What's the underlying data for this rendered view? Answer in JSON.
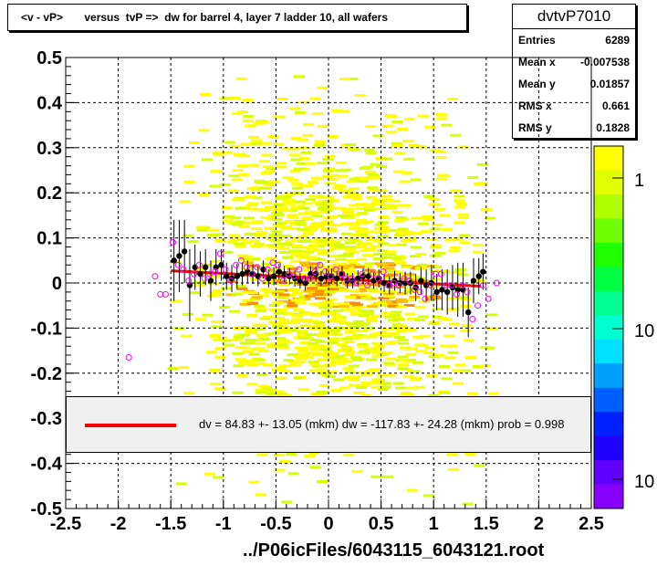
{
  "chart_data": {
    "type": "scatter",
    "title": "<v - vP>       versus  tvP =>  dw for barrel 4, layer 7 ladder 10, all wafers",
    "xlabel": "../P06icFiles/6043115_6043121.root",
    "ylabel": "",
    "xlim": [
      -2.5,
      2.5
    ],
    "ylim": [
      -0.5,
      0.5
    ],
    "x_ticks": [
      "-2.5",
      "-2",
      "-1.5",
      "-1",
      "-0.5",
      "0",
      "0.5",
      "1",
      "1.5",
      "2",
      "2.5"
    ],
    "y_ticks": [
      "0.5",
      "0.4",
      "0.3",
      "0.2",
      "0.1",
      "0",
      "-0.1",
      "-0.2",
      "-0.3",
      "-0.4",
      "-0.5"
    ],
    "colorbar_ticks": [
      "1",
      "10",
      "10"
    ],
    "grid": true,
    "colors": {
      "fit": "#ff0000",
      "open_marker": "#ff00ff",
      "filled_marker": "#000000"
    },
    "stats": {
      "name": "dvtvP7010",
      "rows": [
        {
          "label": "Entries",
          "value": "6289"
        },
        {
          "label": "Mean x",
          "value": "-0.007538"
        },
        {
          "label": "Mean y",
          "value": "0.01857"
        },
        {
          "label": "RMS x",
          "value": "0.661"
        },
        {
          "label": "RMS y",
          "value": "0.1828"
        }
      ]
    },
    "fit": {
      "text": "dv =   84.83 +- 13.05 (mkm) dw = -117.83 +- 24.28 (mkm) prob = 0.998",
      "x": [
        -1.5,
        1.45
      ],
      "y": [
        0.027,
        -0.007
      ]
    },
    "series": [
      {
        "style": "filled",
        "x": [
          -1.47,
          -1.42,
          -1.37,
          -1.32,
          -1.27,
          -1.22,
          -1.17,
          -1.12,
          -1.07,
          -1.02,
          -0.97,
          -0.92,
          -0.87,
          -0.82,
          -0.77,
          -0.72,
          -0.67,
          -0.62,
          -0.57,
          -0.52,
          -0.47,
          -0.42,
          -0.37,
          -0.32,
          -0.27,
          -0.22,
          -0.17,
          -0.12,
          -0.07,
          -0.02,
          0.03,
          0.08,
          0.13,
          0.18,
          0.23,
          0.28,
          0.33,
          0.38,
          0.43,
          0.48,
          0.53,
          0.58,
          0.63,
          0.68,
          0.73,
          0.78,
          0.83,
          0.88,
          0.93,
          0.98,
          1.03,
          1.08,
          1.13,
          1.18,
          1.23,
          1.28,
          1.33,
          1.38,
          1.43,
          1.47
        ],
        "y": [
          0.05,
          0.06,
          0.07,
          -0.005,
          0.035,
          0.02,
          0.035,
          0.005,
          0.035,
          0.04,
          0.015,
          0.01,
          0.015,
          0.02,
          0.025,
          0.02,
          0.015,
          0.03,
          0.01,
          0.015,
          0.025,
          0.02,
          0.015,
          0.01,
          0.005,
          0.0,
          0.02,
          0.02,
          0.01,
          0.015,
          0.015,
          0.01,
          0.02,
          0.005,
          0.005,
          0.01,
          0.015,
          0.015,
          0.005,
          0.01,
          0.0,
          -0.005,
          0.005,
          0.0,
          0.0,
          0.0,
          -0.01,
          0.005,
          -0.005,
          0.0,
          -0.02,
          -0.015,
          -0.02,
          -0.01,
          -0.015,
          -0.015,
          -0.065,
          0.005,
          0.015,
          0.025
        ],
        "err": [
          0.09,
          0.08,
          0.07,
          0.08,
          0.05,
          0.05,
          0.04,
          0.045,
          0.04,
          0.035,
          0.03,
          0.03,
          0.028,
          0.025,
          0.025,
          0.022,
          0.022,
          0.02,
          0.02,
          0.02,
          0.018,
          0.018,
          0.018,
          0.018,
          0.017,
          0.017,
          0.017,
          0.017,
          0.017,
          0.017,
          0.017,
          0.017,
          0.017,
          0.017,
          0.017,
          0.018,
          0.018,
          0.018,
          0.018,
          0.02,
          0.02,
          0.02,
          0.022,
          0.022,
          0.025,
          0.025,
          0.03,
          0.03,
          0.035,
          0.04,
          0.04,
          0.045,
          0.05,
          0.05,
          0.06,
          0.06,
          0.055,
          0.05,
          0.04,
          0.04
        ]
      },
      {
        "style": "open",
        "x": [
          -1.9,
          -1.65,
          -1.6,
          -1.55,
          -1.48,
          -1.43,
          -1.38,
          -1.33,
          -1.28,
          -1.23,
          -1.18,
          -1.13,
          -1.08,
          -1.03,
          -0.98,
          -0.93,
          -0.88,
          -0.83,
          -0.78,
          -0.73,
          -0.68,
          -0.63,
          -0.58,
          -0.53,
          -0.48,
          -0.43,
          -0.38,
          -0.33,
          -0.28,
          -0.23,
          -0.18,
          -0.13,
          -0.08,
          -0.03,
          0.02,
          0.07,
          0.12,
          0.17,
          0.22,
          0.27,
          0.32,
          0.37,
          0.42,
          0.47,
          0.52,
          0.57,
          0.62,
          0.67,
          0.72,
          0.77,
          0.82,
          0.87,
          0.92,
          0.97,
          1.02,
          1.07,
          1.12,
          1.17,
          1.22,
          1.27,
          1.32,
          1.37,
          1.42,
          1.47,
          1.52,
          1.6
        ],
        "y": [
          -0.165,
          0.015,
          -0.025,
          -0.025,
          0.09,
          0.04,
          0.03,
          0.005,
          0.02,
          0.04,
          0.01,
          0.02,
          0.025,
          0.065,
          0.03,
          0.005,
          0.04,
          0.05,
          0.035,
          0.02,
          0.035,
          0.01,
          0.03,
          0.045,
          0.04,
          0.005,
          0.02,
          0.015,
          0.03,
          0.01,
          0.01,
          0.025,
          0.04,
          0.025,
          0.015,
          0.03,
          0.02,
          0.01,
          0.01,
          0.0,
          0.02,
          -0.005,
          0.02,
          0.01,
          0.025,
          -0.005,
          0.0,
          -0.005,
          0.01,
          0.005,
          -0.015,
          -0.02,
          -0.035,
          -0.005,
          0.02,
          0.02,
          -0.005,
          -0.005,
          -0.025,
          -0.005,
          -0.02,
          -0.08,
          -0.05,
          -0.005,
          -0.035,
          0.0
        ]
      }
    ]
  }
}
